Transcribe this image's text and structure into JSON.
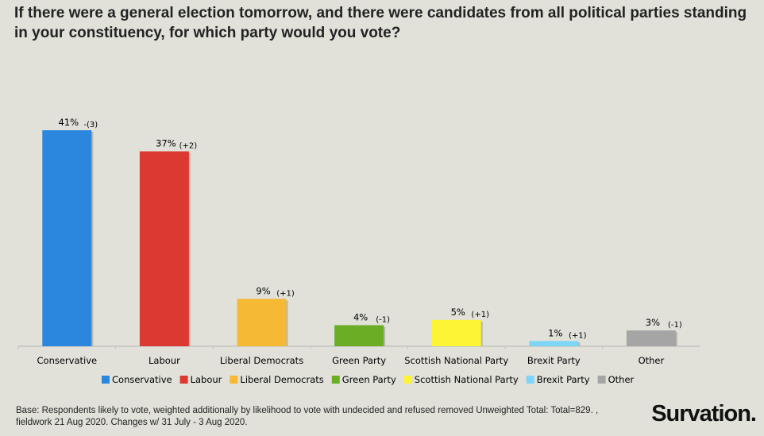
{
  "title": "If there were a general election tomorrow, and there were candidates from all political parties standing in your constituency, for which party would you vote?",
  "footnote": "Base: Respondents likely to vote, weighted additionally by likelihood to vote with undecided and refused removed Unweighted Total: Total=829. , fieldwork 21 Aug 2020. Changes w/ 31 July - 3 Aug  2020.",
  "logo": "Survation.",
  "chart_data": {
    "type": "bar",
    "title": "",
    "xlabel": "",
    "ylabel": "",
    "ylim": [
      0,
      41
    ],
    "grid": false,
    "legend_position": "bottom",
    "categories": [
      "Conservative",
      "Labour",
      "Liberal Democrats",
      "Green Party",
      "Scottish National Party",
      "Brexit Party",
      "Other"
    ],
    "values": [
      41,
      37,
      9,
      4,
      5,
      1,
      3
    ],
    "data_labels": [
      "41%",
      "37%",
      "9%",
      "4%",
      "5%",
      "1%",
      "3%"
    ],
    "changes": [
      "-(3)",
      "(+2)",
      "(+1)",
      "(-1)",
      "(+1)",
      "(+1)",
      "(-1)"
    ],
    "colors": [
      "#2b87dc",
      "#dc3a31",
      "#f5b933",
      "#6aae26",
      "#fcf434",
      "#7dd6f7",
      "#a5a5a5"
    ]
  }
}
